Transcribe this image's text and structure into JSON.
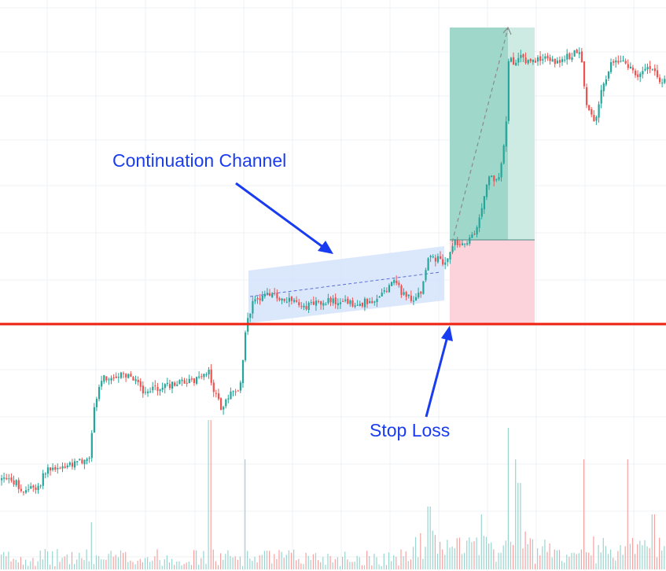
{
  "annotations": {
    "channel_label": "Continuation Channel",
    "stop_label": "Stop Loss"
  },
  "colors": {
    "up": "#26a69a",
    "down": "#ef5350",
    "volume_up": "#9ad5cf",
    "volume_down": "#f5a3a1",
    "stop_line": "#f0200e",
    "annotation": "#1a3cf0",
    "channel_fill": "#cfe0fb",
    "target_zone": "#9fd8cb",
    "target_zone_light": "#cdeae3",
    "stop_zone": "#fcd3da",
    "grid": "#eef1f5"
  },
  "chart_data": {
    "type": "candlestick",
    "title": "",
    "xlabel": "",
    "ylabel": "",
    "price_path": [
      [
        0,
        610
      ],
      [
        18,
        612
      ],
      [
        30,
        625
      ],
      [
        48,
        618
      ],
      [
        58,
        598
      ],
      [
        75,
        592
      ],
      [
        95,
        588
      ],
      [
        112,
        586
      ],
      [
        118,
        525
      ],
      [
        128,
        480
      ],
      [
        150,
        476
      ],
      [
        170,
        480
      ],
      [
        182,
        497
      ],
      [
        205,
        493
      ],
      [
        225,
        488
      ],
      [
        250,
        482
      ],
      [
        264,
        470
      ],
      [
        272,
        500
      ],
      [
        280,
        518
      ],
      [
        292,
        500
      ],
      [
        305,
        490
      ],
      [
        309,
        445
      ],
      [
        313,
        410
      ],
      [
        320,
        385
      ],
      [
        332,
        380
      ],
      [
        346,
        370
      ],
      [
        352,
        383
      ],
      [
        370,
        378
      ],
      [
        390,
        390
      ],
      [
        410,
        383
      ],
      [
        430,
        382
      ],
      [
        448,
        388
      ],
      [
        470,
        383
      ],
      [
        490,
        372
      ],
      [
        500,
        356
      ],
      [
        510,
        372
      ],
      [
        522,
        380
      ],
      [
        535,
        370
      ],
      [
        545,
        320
      ],
      [
        555,
        330
      ],
      [
        566,
        333
      ],
      [
        575,
        310
      ],
      [
        590,
        310
      ],
      [
        605,
        290
      ],
      [
        612,
        265
      ],
      [
        620,
        225
      ],
      [
        632,
        228
      ],
      [
        642,
        175
      ],
      [
        646,
        70
      ],
      [
        652,
        80
      ],
      [
        660,
        70
      ],
      [
        670,
        78
      ],
      [
        690,
        76
      ],
      [
        710,
        78
      ],
      [
        735,
        66
      ],
      [
        740,
        90
      ],
      [
        745,
        130
      ],
      [
        755,
        160
      ],
      [
        760,
        130
      ],
      [
        768,
        103
      ],
      [
        778,
        78
      ],
      [
        795,
        82
      ],
      [
        810,
        96
      ],
      [
        820,
        90
      ],
      [
        830,
        90
      ],
      [
        838,
        103
      ],
      [
        847,
        100
      ]
    ],
    "annotations": [
      "Continuation Channel",
      "Stop Loss"
    ]
  }
}
